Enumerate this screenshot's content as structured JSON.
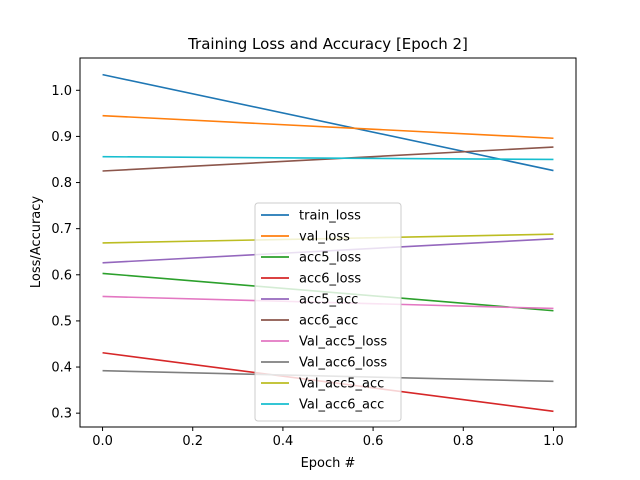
{
  "chart_data": {
    "type": "line",
    "title": "Training Loss and Accuracy [Epoch 2]",
    "xlabel": "Epoch #",
    "ylabel": "Loss/Accuracy",
    "xlim": [
      -0.05,
      1.05
    ],
    "ylim": [
      0.27,
      1.07
    ],
    "xticks": [
      0.0,
      0.2,
      0.4,
      0.6,
      0.8,
      1.0
    ],
    "xtick_labels": [
      "0.0",
      "0.2",
      "0.4",
      "0.6",
      "0.8",
      "1.0"
    ],
    "yticks": [
      0.3,
      0.4,
      0.5,
      0.6,
      0.7,
      0.8,
      0.9,
      1.0
    ],
    "ytick_labels": [
      "0.3",
      "0.4",
      "0.5",
      "0.6",
      "0.7",
      "0.8",
      "0.9",
      "1.0"
    ],
    "grid": false,
    "legend_position": "lower-center",
    "x": [
      0.0,
      1.0
    ],
    "series": [
      {
        "name": "train_loss",
        "color": "#1f77b4",
        "values": [
          1.034,
          0.826
        ]
      },
      {
        "name": "val_loss",
        "color": "#ff7f0e",
        "values": [
          0.945,
          0.896
        ]
      },
      {
        "name": "acc5_loss",
        "color": "#2ca02c",
        "values": [
          0.603,
          0.522
        ]
      },
      {
        "name": "acc6_loss",
        "color": "#d62728",
        "values": [
          0.431,
          0.304
        ]
      },
      {
        "name": "acc5_acc",
        "color": "#9467bd",
        "values": [
          0.626,
          0.678
        ]
      },
      {
        "name": "acc6_acc",
        "color": "#8c564b",
        "values": [
          0.825,
          0.877
        ]
      },
      {
        "name": "Val_acc5_loss",
        "color": "#e377c2",
        "values": [
          0.553,
          0.527
        ]
      },
      {
        "name": "Val_acc6_loss",
        "color": "#7f7f7f",
        "values": [
          0.392,
          0.369
        ]
      },
      {
        "name": "Val_acc5_acc",
        "color": "#bcbd22",
        "values": [
          0.669,
          0.688
        ]
      },
      {
        "name": "Val_acc6_acc",
        "color": "#17becf",
        "values": [
          0.856,
          0.85
        ]
      }
    ]
  }
}
